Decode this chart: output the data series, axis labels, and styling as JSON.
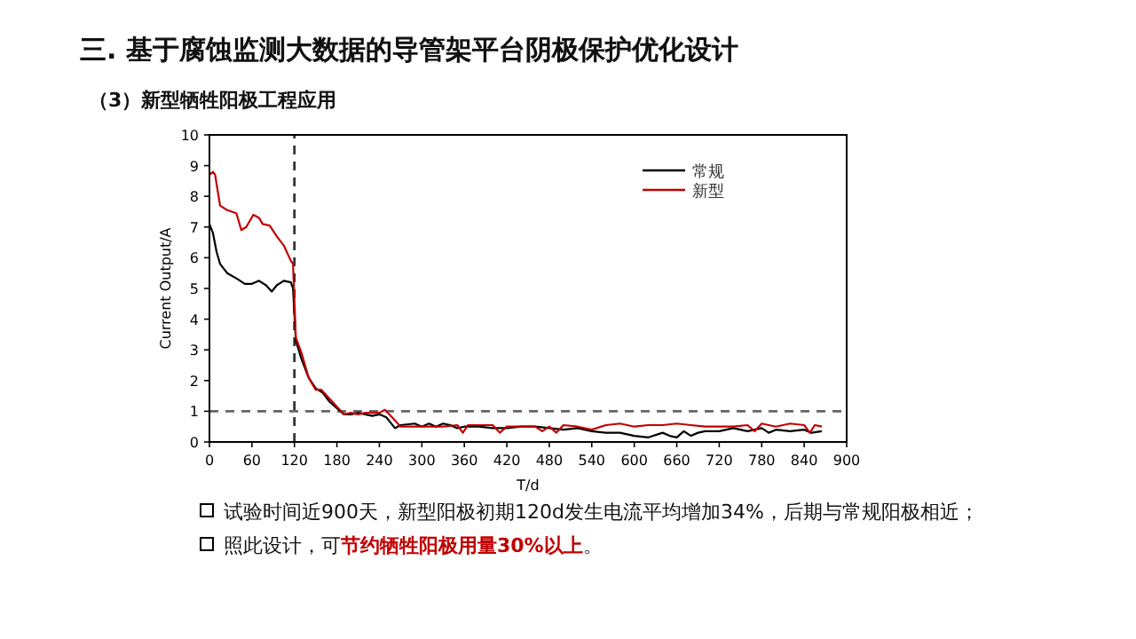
{
  "chart_data": {
    "type": "line",
    "title": "三. 基于腐蚀监测大数据的导管架平台阴极保护优化设计",
    "subtitle": "（3）新型牺牲阳极工程应用",
    "xlabel": "T/d",
    "ylabel": "Current Output/A",
    "xlim": [
      0,
      900
    ],
    "xticks": [
      0,
      60,
      120,
      180,
      240,
      300,
      360,
      420,
      480,
      540,
      600,
      660,
      720,
      780,
      840,
      900
    ],
    "ylim": [
      0,
      10
    ],
    "yticks": [
      0,
      1,
      2,
      3,
      4,
      5,
      6,
      7,
      8,
      9,
      10
    ],
    "grid": false,
    "legend": "top right",
    "series": [
      {
        "name": "常规",
        "color": "#000000",
        "x": [
          0,
          5,
          10,
          15,
          25,
          40,
          50,
          60,
          70,
          80,
          88,
          95,
          105,
          115,
          118,
          122,
          130,
          140,
          150,
          160,
          170,
          180,
          190,
          200,
          210,
          220,
          230,
          240,
          250,
          262,
          270,
          290,
          300,
          310,
          320,
          330,
          340,
          350,
          360,
          380,
          400,
          420,
          440,
          460,
          480,
          500,
          520,
          540,
          560,
          580,
          600,
          620,
          640,
          650,
          660,
          670,
          680,
          690,
          700,
          720,
          740,
          760,
          780,
          790,
          800,
          820,
          840,
          850,
          865
        ],
        "values": [
          7.1,
          6.8,
          6.2,
          5.8,
          5.5,
          5.3,
          5.15,
          5.15,
          5.25,
          5.1,
          4.9,
          5.1,
          5.25,
          5.2,
          5.0,
          3.3,
          2.7,
          2.1,
          1.75,
          1.6,
          1.3,
          1.1,
          0.9,
          0.9,
          0.95,
          0.9,
          0.85,
          0.9,
          0.8,
          0.45,
          0.55,
          0.6,
          0.5,
          0.6,
          0.5,
          0.6,
          0.55,
          0.45,
          0.5,
          0.5,
          0.45,
          0.45,
          0.5,
          0.5,
          0.45,
          0.4,
          0.45,
          0.35,
          0.3,
          0.3,
          0.2,
          0.15,
          0.3,
          0.2,
          0.15,
          0.35,
          0.2,
          0.3,
          0.35,
          0.35,
          0.45,
          0.35,
          0.45,
          0.3,
          0.4,
          0.35,
          0.4,
          0.3,
          0.35
        ]
      },
      {
        "name": "新型",
        "color": "#c00000",
        "x": [
          0,
          5,
          8,
          15,
          25,
          38,
          45,
          52,
          62,
          70,
          75,
          85,
          95,
          105,
          115,
          118,
          122,
          130,
          140,
          150,
          158,
          170,
          180,
          190,
          200,
          210,
          220,
          240,
          248,
          260,
          270,
          300,
          330,
          350,
          358,
          365,
          400,
          410,
          420,
          460,
          470,
          480,
          490,
          500,
          520,
          540,
          560,
          580,
          600,
          620,
          640,
          660,
          680,
          700,
          720,
          740,
          760,
          770,
          780,
          800,
          820,
          840,
          848,
          855,
          865
        ],
        "values": [
          8.7,
          8.8,
          8.7,
          7.7,
          7.55,
          7.45,
          6.9,
          7.0,
          7.4,
          7.3,
          7.1,
          7.05,
          6.7,
          6.4,
          5.9,
          5.8,
          3.4,
          2.9,
          2.1,
          1.7,
          1.7,
          1.4,
          1.15,
          0.9,
          0.95,
          0.9,
          0.95,
          0.95,
          1.05,
          0.75,
          0.5,
          0.5,
          0.5,
          0.55,
          0.3,
          0.55,
          0.55,
          0.3,
          0.5,
          0.5,
          0.35,
          0.5,
          0.3,
          0.55,
          0.5,
          0.4,
          0.55,
          0.6,
          0.5,
          0.55,
          0.55,
          0.6,
          0.55,
          0.5,
          0.5,
          0.5,
          0.55,
          0.35,
          0.6,
          0.5,
          0.6,
          0.55,
          0.3,
          0.55,
          0.5
        ]
      }
    ],
    "ref_lines": [
      {
        "axis": "x",
        "value": 120,
        "color": "#333333",
        "line_style": "dashed"
      },
      {
        "axis": "y",
        "value": 1,
        "color": "#666666",
        "line_style": "dashed"
      }
    ],
    "annotations": [
      "试验时间近900天，新型阳极初期120d发生电流平均增加34%，后期与常规阳极相近；",
      "照此设计，可**节约牺牲阳极用量30%以上**。"
    ]
  }
}
